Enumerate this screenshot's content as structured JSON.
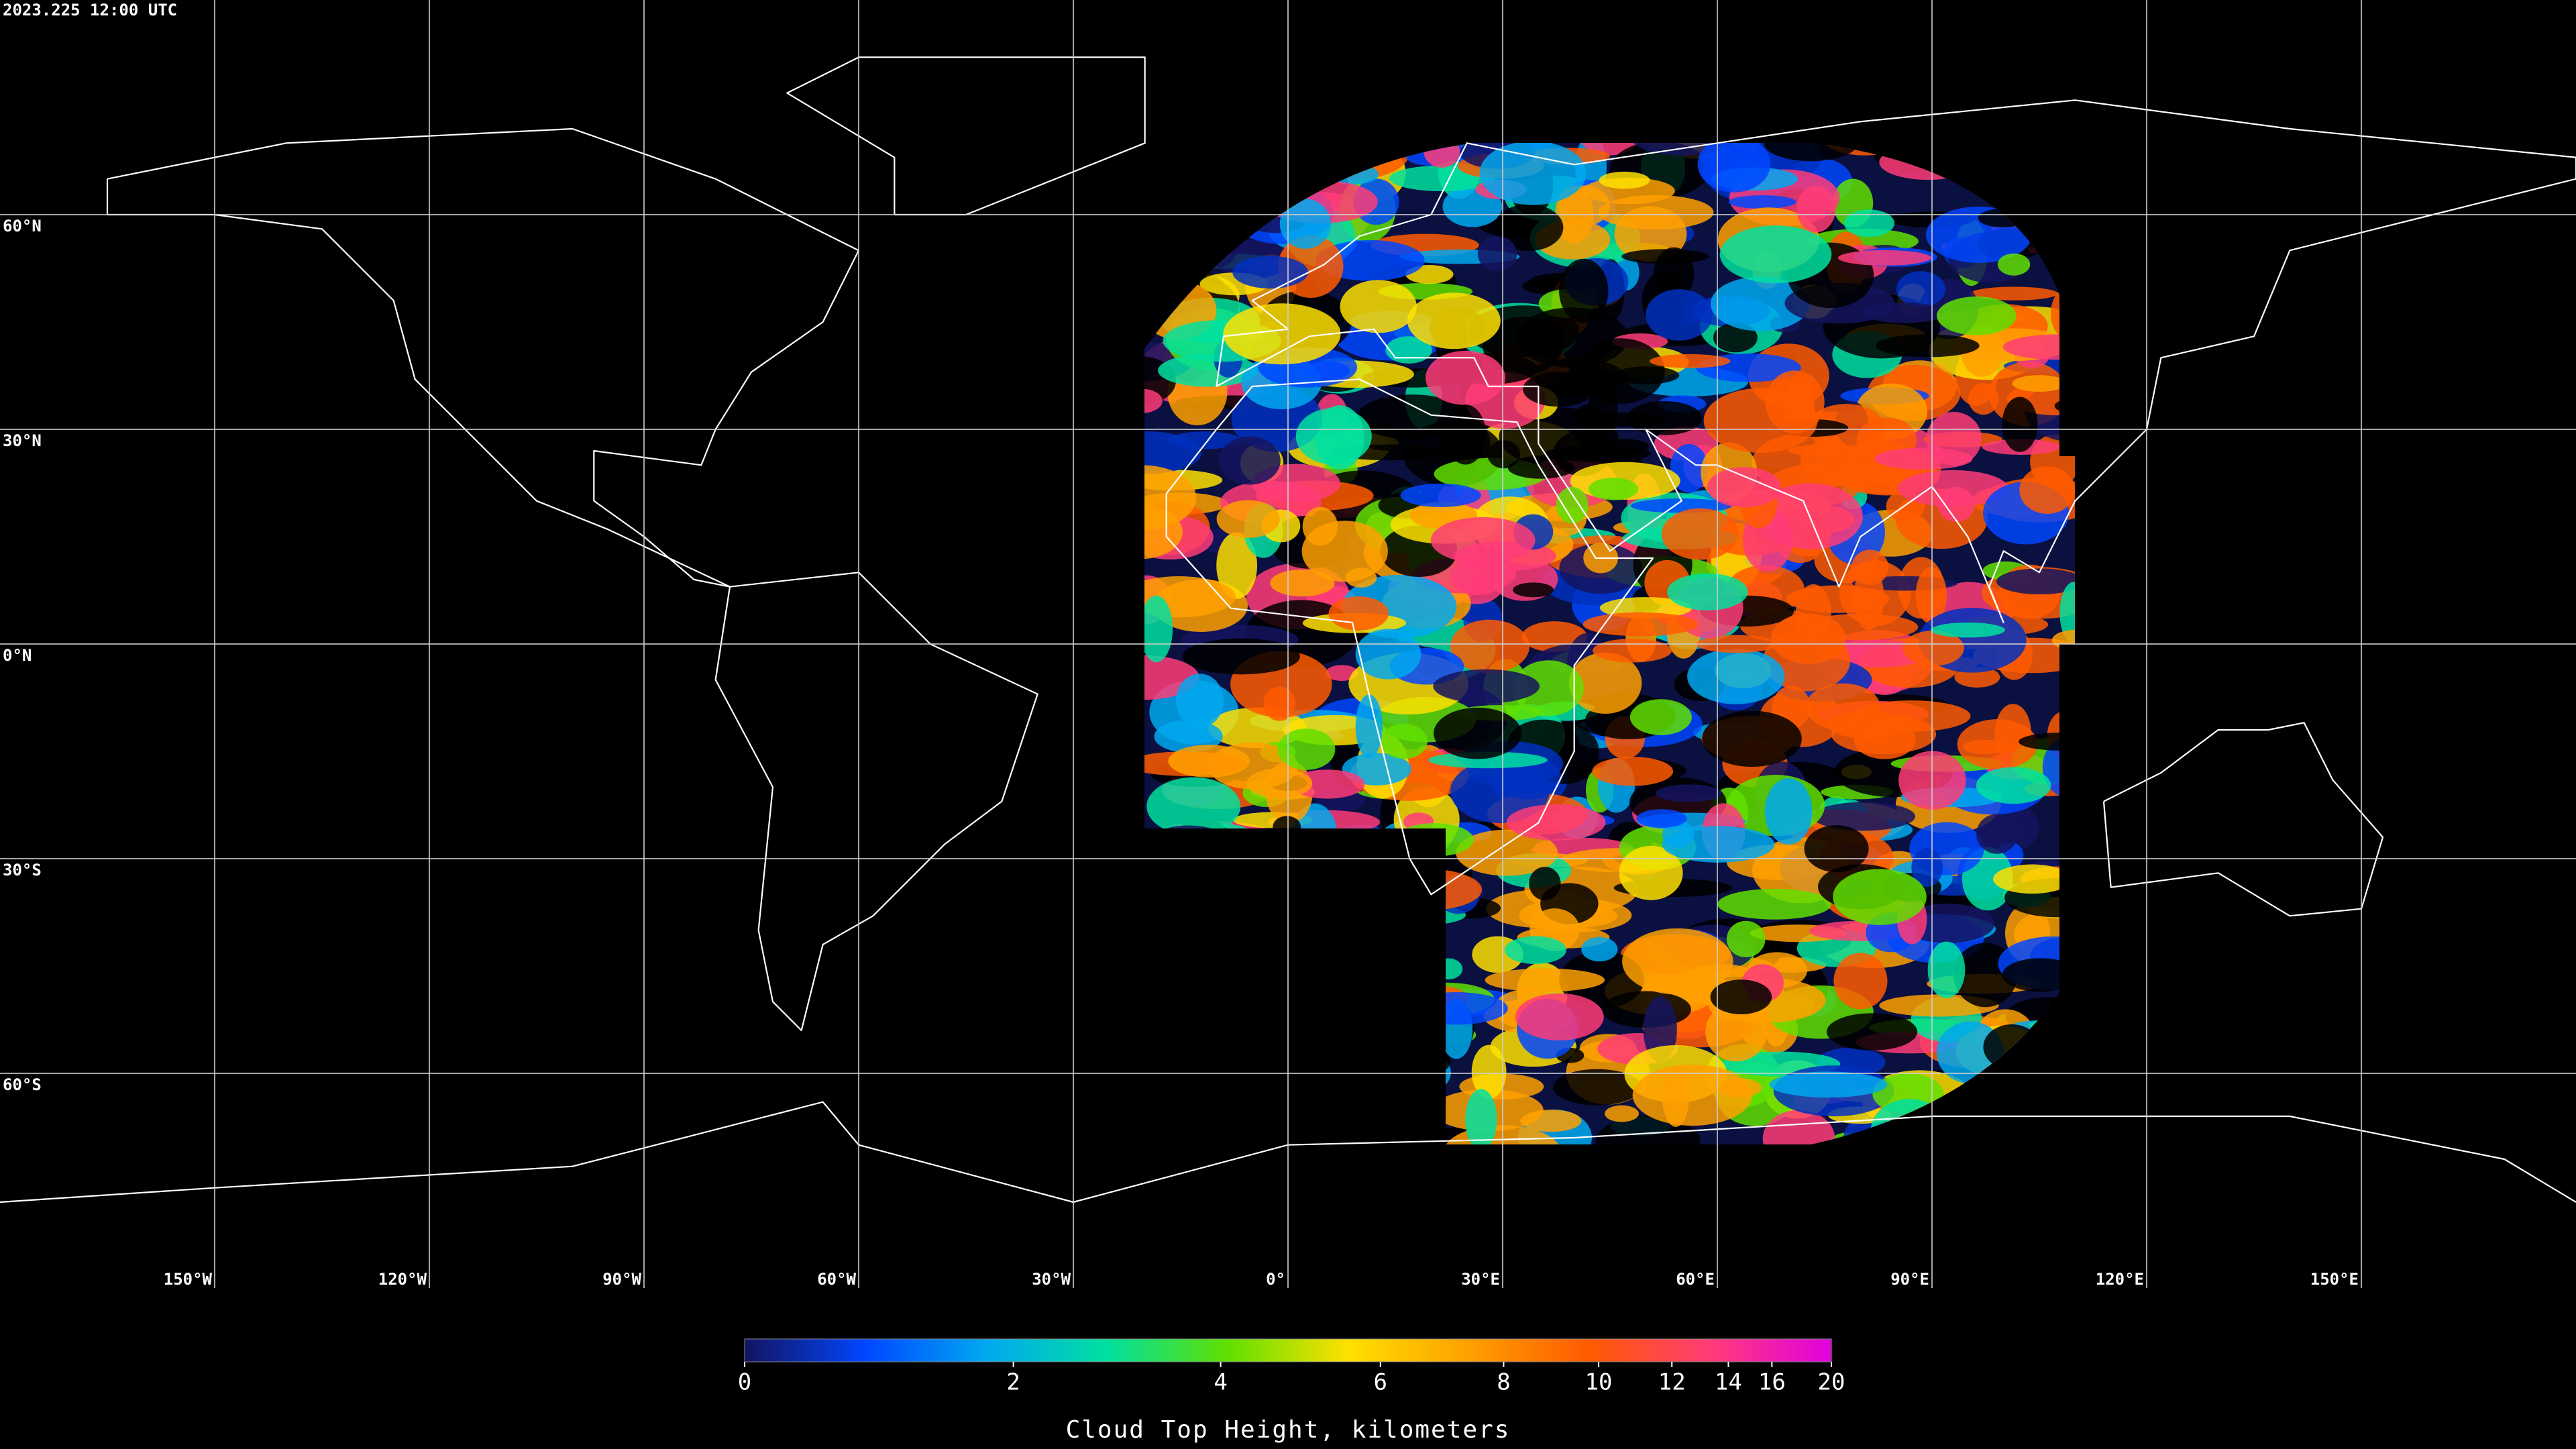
{
  "header": {
    "timestamp": "2023.225 12:00 UTC"
  },
  "map": {
    "lat_ticks": [
      {
        "value": 60,
        "label": "60°N"
      },
      {
        "value": 30,
        "label": "30°N"
      },
      {
        "value": 0,
        "label": "0°N"
      },
      {
        "value": -30,
        "label": "30°S"
      },
      {
        "value": -60,
        "label": "60°S"
      }
    ],
    "lon_ticks": [
      {
        "value": -150,
        "label": "150°W"
      },
      {
        "value": -120,
        "label": "120°W"
      },
      {
        "value": -90,
        "label": "90°W"
      },
      {
        "value": -60,
        "label": "60°W"
      },
      {
        "value": -30,
        "label": "30°W"
      },
      {
        "value": 0,
        "label": "0°"
      },
      {
        "value": 30,
        "label": "30°E"
      },
      {
        "value": 60,
        "label": "60°E"
      },
      {
        "value": 90,
        "label": "90°E"
      },
      {
        "value": 120,
        "label": "120°E"
      },
      {
        "value": 150,
        "label": "150°E"
      }
    ]
  },
  "colorbar": {
    "label": "Cloud Top Height, kilometers",
    "range": [
      0,
      20
    ],
    "ticks": [
      0,
      2,
      4,
      6,
      8,
      10,
      12,
      14,
      16,
      20
    ],
    "colors": [
      "#14145f",
      "#0046ff",
      "#00a8f0",
      "#00e0a0",
      "#60e000",
      "#ffe000",
      "#ffa000",
      "#ff5a00",
      "#ff3c78",
      "#e000e0"
    ]
  }
}
